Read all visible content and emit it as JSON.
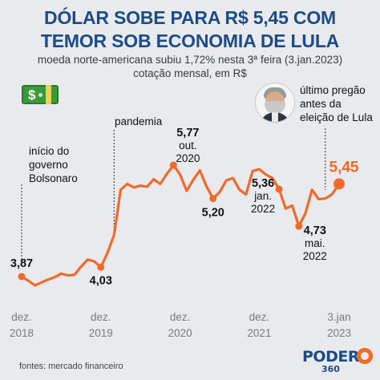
{
  "header": {
    "title_line1": "DÓLAR SOBE PARA R$ 5,45 COM",
    "title_line2": "TEMOR SOB ECONOMIA DE LULA",
    "subtitle_line1": "moeda norte-americana subiu 1,72% nesta 3ª feira (3.jan.2023)",
    "subtitle_line2": "cotação mensal, em R$"
  },
  "annotations": {
    "bolsonaro": [
      "início do",
      "governo",
      "Bolsonaro"
    ],
    "pandemia": [
      "pandemia"
    ],
    "lula": [
      "último pregão",
      "antes da",
      "eleição de Lula"
    ]
  },
  "footer": {
    "source": "fontes: mercado financeiro",
    "logo_word": "PODER",
    "logo_number": "360"
  },
  "colors": {
    "title": "#1c4b86",
    "line": "#f26a2b",
    "background": "#e8eaed"
  },
  "icons": {
    "money": "money-bill-icon",
    "portrait": "lula-portrait-icon",
    "logo": "poder360-logo-icon"
  },
  "chart_data": {
    "type": "line",
    "title": "",
    "xlabel": "",
    "ylabel": "",
    "ylim": [
      3.6,
      6.0
    ],
    "grid": false,
    "x_ticks": [
      {
        "t": 0,
        "line1": "dez.",
        "line2": "2018"
      },
      {
        "t": 12,
        "line1": "dez.",
        "line2": "2019"
      },
      {
        "t": 24,
        "line1": "dez.",
        "line2": "2020"
      },
      {
        "t": 36,
        "line1": "dez.",
        "line2": "2021"
      },
      {
        "t": 48.1,
        "line1": "3.jan",
        "line2": "2023"
      }
    ],
    "series": [
      {
        "values": [
          [
            0,
            3.87
          ],
          [
            1,
            3.8
          ],
          [
            2,
            3.72
          ],
          [
            3,
            3.77
          ],
          [
            4,
            3.82
          ],
          [
            5,
            3.86
          ],
          [
            6,
            3.92
          ],
          [
            7,
            3.89
          ],
          [
            8,
            3.9
          ],
          [
            9,
            4.04
          ],
          [
            10,
            4.16
          ],
          [
            11,
            4.13
          ],
          [
            12,
            4.03
          ],
          [
            13,
            4.27
          ],
          [
            14,
            4.58
          ],
          [
            15,
            5.35
          ],
          [
            16,
            5.45
          ],
          [
            17,
            5.39
          ],
          [
            18,
            5.42
          ],
          [
            19,
            5.4
          ],
          [
            20,
            5.53
          ],
          [
            21,
            5.45
          ],
          [
            22,
            5.62
          ],
          [
            23,
            5.77
          ],
          [
            24,
            5.61
          ],
          [
            25,
            5.33
          ],
          [
            26,
            5.52
          ],
          [
            27,
            5.68
          ],
          [
            28,
            5.41
          ],
          [
            29,
            5.2
          ],
          [
            30,
            5.31
          ],
          [
            31,
            5.51
          ],
          [
            32,
            5.55
          ],
          [
            33,
            5.35
          ],
          [
            34,
            5.27
          ],
          [
            35,
            5.67
          ],
          [
            36,
            5.7
          ],
          [
            37,
            5.61
          ],
          [
            38,
            5.55
          ],
          [
            39,
            5.36
          ],
          [
            40,
            5.03
          ],
          [
            41,
            5.08
          ],
          [
            42,
            4.73
          ],
          [
            43,
            4.95
          ],
          [
            44,
            5.35
          ],
          [
            45,
            5.19
          ],
          [
            46,
            5.2
          ],
          [
            47,
            5.27
          ],
          [
            48.1,
            5.45
          ]
        ]
      }
    ],
    "point_labels": [
      {
        "t": 0,
        "lines": [
          "3,87"
        ]
      },
      {
        "t": 12,
        "lines": [
          "4,03"
        ]
      },
      {
        "t": 23,
        "lines": [
          "5,77",
          "out.",
          "2020"
        ]
      },
      {
        "t": 29,
        "lines": [
          "5,20"
        ]
      },
      {
        "t": 39,
        "lines": [
          "5,36",
          "jan.",
          "2022"
        ]
      },
      {
        "t": 42,
        "lines": [
          "4,73",
          "mai.",
          "2022"
        ]
      },
      {
        "t": 48.1,
        "lines": [
          "5,45"
        ]
      }
    ],
    "highlight_points": [
      0,
      12,
      23,
      29,
      39,
      42,
      48.1
    ],
    "event_lines": [
      {
        "t": 0,
        "name": "bolsonaro"
      },
      {
        "t": 14,
        "name": "pandemia"
      },
      {
        "t": 46,
        "name": "lula"
      }
    ]
  }
}
